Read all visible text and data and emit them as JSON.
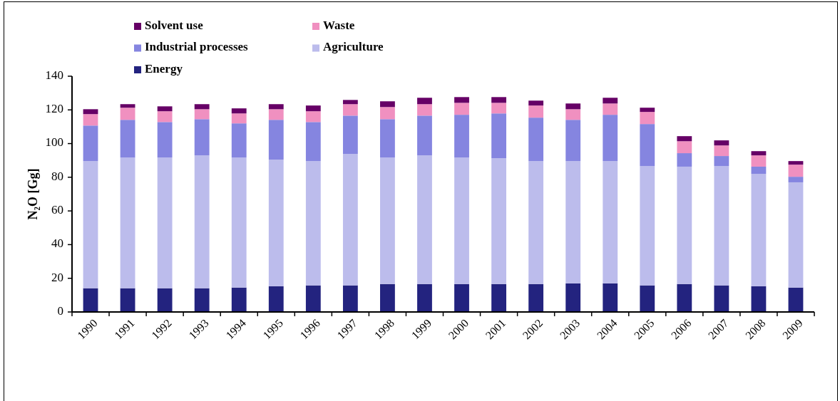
{
  "chart_data": {
    "type": "bar",
    "stacked": true,
    "ylabel": "N₂O [Gg]",
    "categories": [
      "1990",
      "1991",
      "1992",
      "1993",
      "1994",
      "1995",
      "1996",
      "1997",
      "1998",
      "1999",
      "2000",
      "2001",
      "2002",
      "2003",
      "2004",
      "2005",
      "2006",
      "2007",
      "2008",
      "2009"
    ],
    "series": [
      {
        "name": "Energy",
        "color": "#23237f",
        "values": [
          14.1,
          14.1,
          14.1,
          14.1,
          14.5,
          15.3,
          15.8,
          15.8,
          16.6,
          16.6,
          16.6,
          16.6,
          16.6,
          17.0,
          17.0,
          15.8,
          16.6,
          15.8,
          15.3,
          14.5
        ]
      },
      {
        "name": "Agriculture",
        "color": "#bcbcec",
        "values": [
          75.5,
          77.6,
          77.6,
          78.9,
          77.2,
          75.2,
          73.8,
          78.1,
          75.1,
          76.4,
          75.1,
          74.7,
          73.0,
          72.6,
          72.6,
          70.9,
          69.7,
          70.9,
          66.7,
          62.5
        ]
      },
      {
        "name": "Industrial processes",
        "color": "#8585e0",
        "values": [
          21.1,
          22.4,
          21.1,
          21.5,
          20.3,
          23.6,
          23.2,
          22.7,
          22.8,
          23.6,
          25.4,
          26.6,
          25.8,
          24.5,
          27.5,
          24.9,
          8.0,
          5.9,
          4.3,
          3.3
        ]
      },
      {
        "name": "Waste",
        "color": "#f090c0",
        "values": [
          6.8,
          7.2,
          6.4,
          5.9,
          5.9,
          6.3,
          6.4,
          6.8,
          7.2,
          6.8,
          7.1,
          6.3,
          7.2,
          6.3,
          6.7,
          7.2,
          7.1,
          6.3,
          6.7,
          7.2
        ]
      },
      {
        "name": "Solvent use",
        "color": "#660066",
        "values": [
          2.9,
          2.1,
          2.9,
          3.0,
          3.0,
          3.0,
          3.4,
          2.5,
          3.4,
          3.8,
          3.4,
          3.4,
          2.9,
          3.4,
          3.4,
          2.5,
          3.0,
          3.0,
          2.5,
          2.1
        ]
      }
    ],
    "ylim": [
      0,
      140
    ],
    "yticks": [
      0,
      20,
      40,
      60,
      80,
      100,
      120,
      140
    ],
    "legend": "top left"
  }
}
